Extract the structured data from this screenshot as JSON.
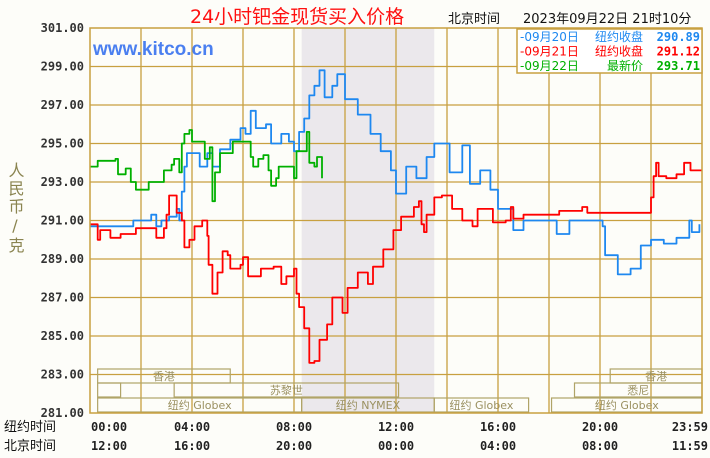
{
  "chart_data": {
    "type": "line",
    "title": "24小时钯金现货买入价格",
    "time_zone_label": "北京时间",
    "timestamp": "2023年09月22日 21时10分",
    "watermark": "www.kitco.cn",
    "ylabel": "人民币/克",
    "ylim": [
      281,
      301
    ],
    "xlim": [
      0,
      24
    ],
    "grid": true,
    "y_ticks": [
      "301.00",
      "299.00",
      "297.00",
      "295.00",
      "293.00",
      "291.00",
      "289.00",
      "287.00",
      "285.00",
      "283.00",
      "281.00"
    ],
    "x_rows": [
      {
        "label": "纽约时间",
        "ticks": [
          "00:00",
          "04:00",
          "08:00",
          "12:00",
          "16:00",
          "20:00",
          "23:59"
        ]
      },
      {
        "label": "北京时间",
        "ticks": [
          "12:00",
          "16:00",
          "20:00",
          "00:00",
          "04:00",
          "08:00",
          "11:59"
        ]
      }
    ],
    "shaded_session": [
      8.3,
      13.5
    ],
    "legend": [
      {
        "date": "-09月20日",
        "label": "纽约收盘",
        "value": "290.89",
        "color": "#1e88f0"
      },
      {
        "date": "-09月21日",
        "label": "纽约收盘",
        "value": "291.12",
        "color": "#ff0000"
      },
      {
        "date": "-09月22日",
        "label": "最新价",
        "value": "293.71",
        "color": "#00b000"
      }
    ],
    "sessions": [
      {
        "name": "香港",
        "row": 0,
        "start": 0.3,
        "end": 5.5
      },
      {
        "name": "香港",
        "row": 0,
        "start": 20.4,
        "end": 24
      },
      {
        "name": "",
        "row": 1,
        "start": 0.3,
        "end": 1.2
      },
      {
        "name": "苏黎世",
        "row": 1,
        "start": 3.3,
        "end": 12.1
      },
      {
        "name": "悉尼",
        "row": 1,
        "start": 19.0,
        "end": 24
      },
      {
        "name": "纽约 Globex",
        "row": 2,
        "start": 0.3,
        "end": 8.3
      },
      {
        "name": "纽约 NYMEX",
        "row": 2,
        "start": 8.3,
        "end": 13.5
      },
      {
        "name": "纽约 Globex",
        "row": 2,
        "start": 13.5,
        "end": 17.2
      },
      {
        "name": "纽约 Globex",
        "row": 2,
        "start": 18.1,
        "end": 24
      }
    ],
    "series": [
      {
        "name": "09月20日",
        "color": "#1e88f0",
        "points": [
          [
            0,
            290.7
          ],
          [
            1.6,
            290.7
          ],
          [
            1.7,
            291.0
          ],
          [
            2.3,
            291.0
          ],
          [
            2.4,
            291.3
          ],
          [
            2.6,
            290.7
          ],
          [
            2.8,
            291.0
          ],
          [
            3.1,
            291.2
          ],
          [
            3.4,
            291.6
          ],
          [
            3.5,
            291.0
          ],
          [
            3.6,
            292.5
          ],
          [
            3.7,
            293.8
          ],
          [
            3.8,
            294.5
          ],
          [
            4.3,
            293.8
          ],
          [
            4.6,
            294.5
          ],
          [
            4.8,
            293.8
          ],
          [
            5.1,
            294.7
          ],
          [
            5.5,
            295.2
          ],
          [
            5.9,
            295.8
          ],
          [
            6.1,
            295.5
          ],
          [
            6.3,
            296.7
          ],
          [
            6.5,
            295.8
          ],
          [
            6.9,
            296.0
          ],
          [
            7.1,
            295.0
          ],
          [
            7.5,
            295.5
          ],
          [
            7.8,
            295.1
          ],
          [
            8.0,
            294.6
          ],
          [
            8.2,
            295.6
          ],
          [
            8.4,
            296.3
          ],
          [
            8.6,
            297.5
          ],
          [
            8.8,
            298.0
          ],
          [
            9.0,
            298.8
          ],
          [
            9.2,
            297.4
          ],
          [
            9.5,
            298.0
          ],
          [
            9.7,
            298.6
          ],
          [
            10.0,
            297.3
          ],
          [
            10.5,
            296.5
          ],
          [
            11.0,
            295.5
          ],
          [
            11.4,
            294.6
          ],
          [
            11.8,
            293.6
          ],
          [
            12.0,
            292.4
          ],
          [
            12.4,
            293.8
          ],
          [
            12.8,
            293.2
          ],
          [
            13.2,
            294.3
          ],
          [
            13.5,
            295.0
          ],
          [
            14.0,
            295.0
          ],
          [
            14.1,
            293.5
          ],
          [
            14.6,
            294.9
          ],
          [
            14.9,
            292.9
          ],
          [
            15.3,
            293.6
          ],
          [
            15.7,
            292.6
          ],
          [
            16.0,
            291.6
          ],
          [
            16.6,
            290.5
          ],
          [
            17.0,
            291.0
          ],
          [
            18.0,
            291.0
          ],
          [
            18.3,
            290.3
          ],
          [
            18.8,
            291.0
          ],
          [
            20.1,
            290.7
          ],
          [
            20.2,
            289.2
          ],
          [
            20.7,
            288.2
          ],
          [
            21.2,
            288.5
          ],
          [
            21.6,
            289.7
          ],
          [
            22.0,
            290.0
          ],
          [
            22.5,
            289.8
          ],
          [
            23.0,
            290.1
          ],
          [
            23.5,
            291.0
          ],
          [
            23.6,
            290.4
          ],
          [
            23.9,
            290.8
          ]
        ]
      },
      {
        "name": "09月21日",
        "color": "#ff0000",
        "points": [
          [
            0,
            290.8
          ],
          [
            0.3,
            290.0
          ],
          [
            0.4,
            290.5
          ],
          [
            0.8,
            290.1
          ],
          [
            1.2,
            290.3
          ],
          [
            1.8,
            290.6
          ],
          [
            2.6,
            290.1
          ],
          [
            2.9,
            290.6
          ],
          [
            3.0,
            291.3
          ],
          [
            3.1,
            292.3
          ],
          [
            3.3,
            292.3
          ],
          [
            3.4,
            291.4
          ],
          [
            3.6,
            291.0
          ],
          [
            3.7,
            289.6
          ],
          [
            3.9,
            290.0
          ],
          [
            4.1,
            290.7
          ],
          [
            4.4,
            291.0
          ],
          [
            4.6,
            290.2
          ],
          [
            4.65,
            288.7
          ],
          [
            4.8,
            287.2
          ],
          [
            5.0,
            288.3
          ],
          [
            5.2,
            289.4
          ],
          [
            5.4,
            289.2
          ],
          [
            5.5,
            288.5
          ],
          [
            5.9,
            288.7
          ],
          [
            6.0,
            289.1
          ],
          [
            6.2,
            288.1
          ],
          [
            6.7,
            288.5
          ],
          [
            7.2,
            288.6
          ],
          [
            7.5,
            287.7
          ],
          [
            7.7,
            288.1
          ],
          [
            8.0,
            288.5
          ],
          [
            8.1,
            287.2
          ],
          [
            8.2,
            286.5
          ],
          [
            8.4,
            285.4
          ],
          [
            8.6,
            283.6
          ],
          [
            8.8,
            283.7
          ],
          [
            9.0,
            284.8
          ],
          [
            9.3,
            285.6
          ],
          [
            9.5,
            287.0
          ],
          [
            9.9,
            286.2
          ],
          [
            10.1,
            287.5
          ],
          [
            10.5,
            288.3
          ],
          [
            10.9,
            287.7
          ],
          [
            11.1,
            288.6
          ],
          [
            11.5,
            289.5
          ],
          [
            11.9,
            290.5
          ],
          [
            12.2,
            291.2
          ],
          [
            12.7,
            291.7
          ],
          [
            12.9,
            292.0
          ],
          [
            13.0,
            290.8
          ],
          [
            13.1,
            290.4
          ],
          [
            13.2,
            291.3
          ],
          [
            13.5,
            292.2
          ],
          [
            13.8,
            292.3
          ],
          [
            14.2,
            291.6
          ],
          [
            14.6,
            291.0
          ],
          [
            15.0,
            290.7
          ],
          [
            15.2,
            291.6
          ],
          [
            15.7,
            291.6
          ],
          [
            15.8,
            290.9
          ],
          [
            16.3,
            291.0
          ],
          [
            16.5,
            291.7
          ],
          [
            16.6,
            291.1
          ],
          [
            17.0,
            291.3
          ],
          [
            18.3,
            291.3
          ],
          [
            18.4,
            291.5
          ],
          [
            19.3,
            291.7
          ],
          [
            19.5,
            291.4
          ],
          [
            21.9,
            291.4
          ],
          [
            22.0,
            292.2
          ],
          [
            22.1,
            293.3
          ],
          [
            22.2,
            294.0
          ],
          [
            22.3,
            293.3
          ],
          [
            22.6,
            293.2
          ],
          [
            23.0,
            293.4
          ],
          [
            23.3,
            294.0
          ],
          [
            23.5,
            294.0
          ],
          [
            23.55,
            293.6
          ],
          [
            24,
            293.6
          ]
        ]
      },
      {
        "name": "09月22日",
        "color": "#00b000",
        "points": [
          [
            0,
            293.8
          ],
          [
            0.3,
            294.1
          ],
          [
            1.0,
            294.2
          ],
          [
            1.1,
            293.4
          ],
          [
            1.4,
            293.7
          ],
          [
            1.6,
            293.0
          ],
          [
            1.8,
            292.6
          ],
          [
            2.2,
            292.6
          ],
          [
            2.3,
            293.0
          ],
          [
            2.8,
            293.0
          ],
          [
            2.9,
            293.6
          ],
          [
            3.2,
            293.9
          ],
          [
            3.3,
            294.2
          ],
          [
            3.5,
            293.5
          ],
          [
            3.6,
            295.0
          ],
          [
            3.7,
            295.5
          ],
          [
            3.9,
            295.7
          ],
          [
            4.0,
            295.1
          ],
          [
            4.3,
            295.1
          ],
          [
            4.5,
            294.2
          ],
          [
            4.7,
            294.8
          ],
          [
            4.8,
            292.0
          ],
          [
            4.9,
            293.5
          ],
          [
            5.1,
            294.5
          ],
          [
            5.5,
            294.5
          ],
          [
            5.6,
            295.1
          ],
          [
            6.2,
            295.1
          ],
          [
            6.3,
            294.3
          ],
          [
            6.4,
            293.8
          ],
          [
            6.6,
            294.2
          ],
          [
            6.8,
            294.4
          ],
          [
            7.0,
            293.6
          ],
          [
            7.1,
            292.8
          ],
          [
            7.3,
            293.2
          ],
          [
            7.4,
            293.8
          ],
          [
            7.9,
            293.8
          ],
          [
            8.0,
            293.2
          ],
          [
            8.1,
            294.6
          ],
          [
            8.5,
            295.6
          ],
          [
            8.6,
            294.0
          ],
          [
            8.8,
            293.8
          ],
          [
            8.9,
            294.3
          ],
          [
            9.1,
            293.2
          ]
        ]
      }
    ]
  }
}
